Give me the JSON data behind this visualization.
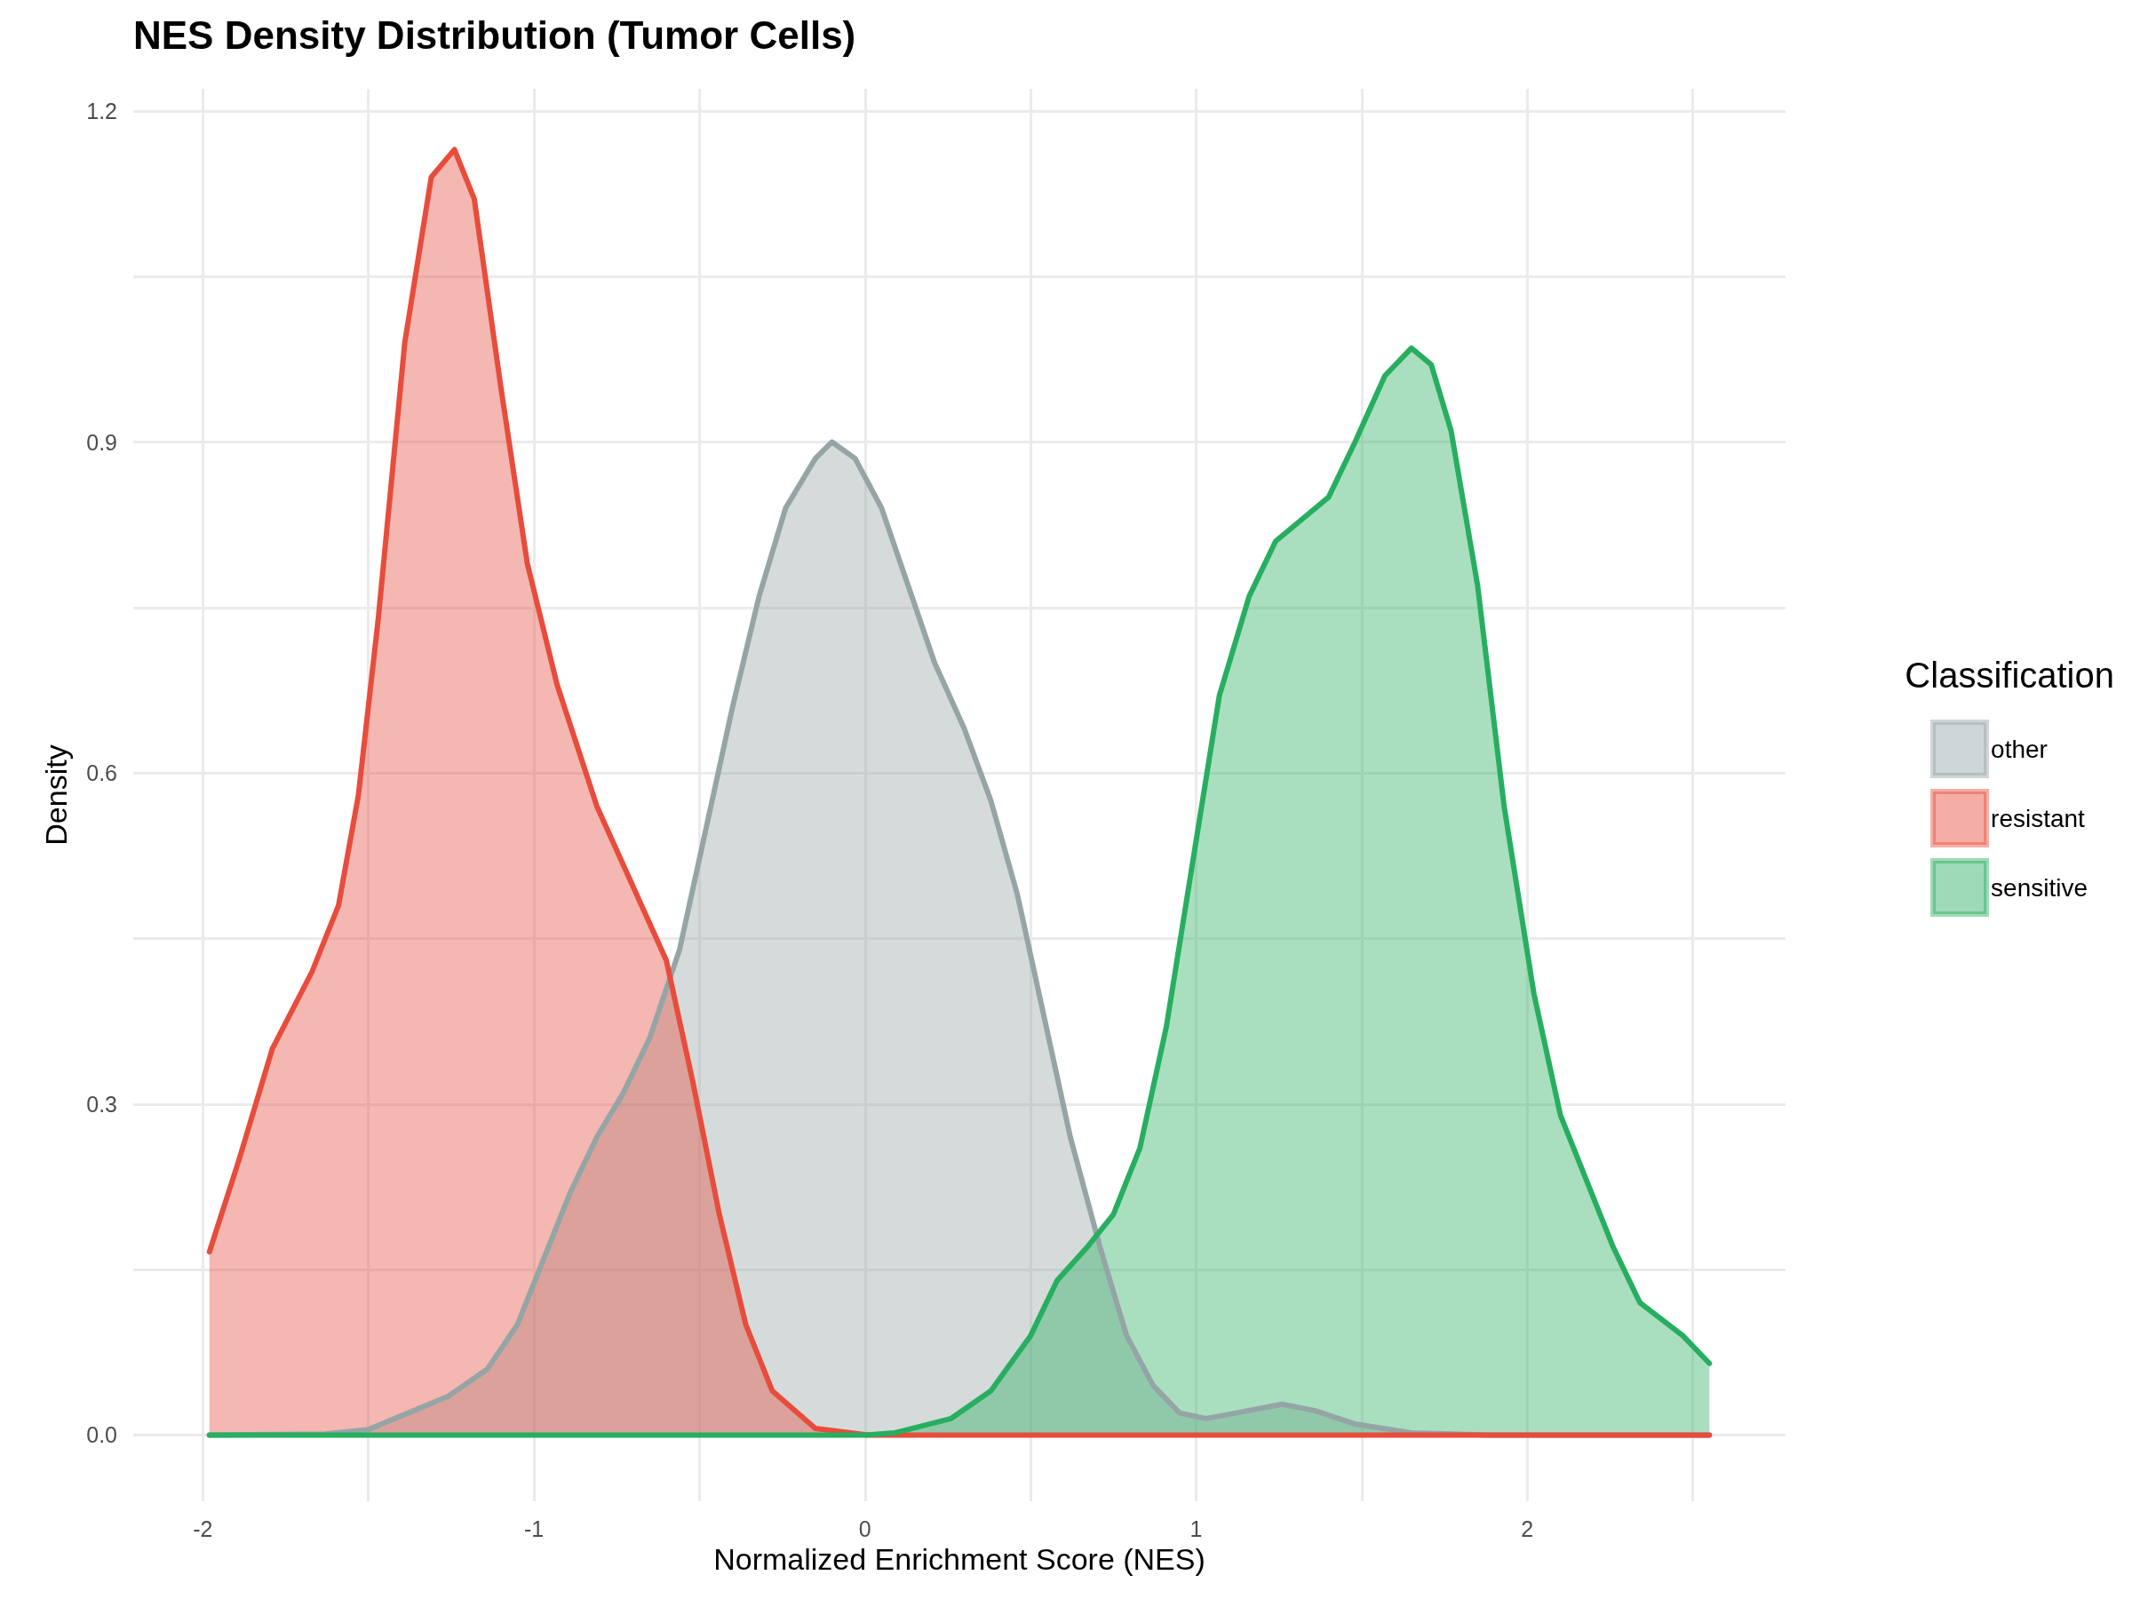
{
  "chart_data": {
    "type": "area",
    "title": "NES Density Distribution (Tumor Cells)",
    "xlabel": "Normalized Enrichment Score (NES)",
    "ylabel": "Density",
    "legend_title": "Classification",
    "legend": "right",
    "grid": true,
    "marker": "none",
    "line_style": "solid",
    "xlim": [
      -2.21,
      2.78
    ],
    "ylim": [
      -0.06,
      1.22
    ],
    "xticks": [
      -2,
      {
        "value": -1.5,
        "label": null
      },
      -1,
      {
        "value": -0.5,
        "label": null
      },
      0,
      {
        "value": 0.5,
        "label": null
      },
      1,
      {
        "value": 1.5,
        "label": null
      },
      2,
      {
        "value": 2.5,
        "label": null
      }
    ],
    "yticks": [
      {
        "value": 0,
        "label": "0.0"
      },
      {
        "value": 0.15,
        "label": null
      },
      0.3,
      {
        "value": 0.45,
        "label": null
      },
      0.6,
      {
        "value": 0.75,
        "label": null
      },
      0.9,
      {
        "value": 1.05,
        "label": null
      },
      1.2
    ],
    "series": [
      {
        "name": "other",
        "color": "#95a5a6",
        "x": [
          -1.98,
          -1.63,
          -1.5,
          -1.38,
          -1.26,
          -1.14,
          -1.05,
          -0.97,
          -0.89,
          -0.81,
          -0.73,
          -0.65,
          -0.56,
          -0.48,
          -0.4,
          -0.32,
          -0.24,
          -0.15,
          -0.1,
          -0.03,
          0.05,
          0.13,
          0.21,
          0.3,
          0.38,
          0.46,
          0.54,
          0.62,
          0.71,
          0.79,
          0.87,
          0.95,
          1.03,
          1.12,
          1.26,
          1.36,
          1.48,
          1.65,
          1.89,
          2.55
        ],
        "values": [
          0,
          0.001,
          0.005,
          0.02,
          0.035,
          0.06,
          0.1,
          0.16,
          0.22,
          0.27,
          0.31,
          0.36,
          0.44,
          0.55,
          0.66,
          0.76,
          0.84,
          0.885,
          0.9,
          0.885,
          0.84,
          0.77,
          0.7,
          0.64,
          0.575,
          0.49,
          0.38,
          0.27,
          0.17,
          0.09,
          0.045,
          0.02,
          0.015,
          0.02,
          0.028,
          0.022,
          0.01,
          0.002,
          0,
          0
        ]
      },
      {
        "name": "resistant",
        "color": "#e74c3c",
        "x": [
          -1.98,
          -1.89,
          -1.79,
          -1.67,
          -1.59,
          -1.53,
          -1.47,
          -1.39,
          -1.31,
          -1.24,
          -1.18,
          -1.1,
          -1.02,
          -0.93,
          -0.81,
          -0.69,
          -0.6,
          -0.52,
          -0.44,
          -0.36,
          -0.28,
          -0.15,
          0.01,
          2.55
        ],
        "values": [
          0.166,
          0.25,
          0.35,
          0.42,
          0.48,
          0.58,
          0.74,
          0.99,
          1.14,
          1.165,
          1.12,
          0.95,
          0.79,
          0.68,
          0.57,
          0.49,
          0.43,
          0.32,
          0.2,
          0.1,
          0.04,
          0.006,
          0,
          0
        ]
      },
      {
        "name": "sensitive",
        "color": "#27ae60",
        "x": [
          -1.98,
          0,
          0.09,
          0.26,
          0.38,
          0.5,
          0.58,
          0.67,
          0.75,
          0.83,
          0.91,
          0.99,
          1.07,
          1.16,
          1.24,
          1.32,
          1.4,
          1.48,
          1.57,
          1.65,
          1.71,
          1.77,
          1.85,
          1.93,
          2.02,
          2.1,
          2.18,
          2.26,
          2.34,
          2.47,
          2.55
        ],
        "values": [
          0,
          0,
          0.002,
          0.015,
          0.04,
          0.09,
          0.14,
          0.17,
          0.2,
          0.26,
          0.37,
          0.52,
          0.67,
          0.76,
          0.81,
          0.83,
          0.85,
          0.9,
          0.96,
          0.985,
          0.97,
          0.91,
          0.77,
          0.57,
          0.4,
          0.29,
          0.23,
          0.17,
          0.12,
          0.09,
          0.065
        ]
      }
    ]
  }
}
